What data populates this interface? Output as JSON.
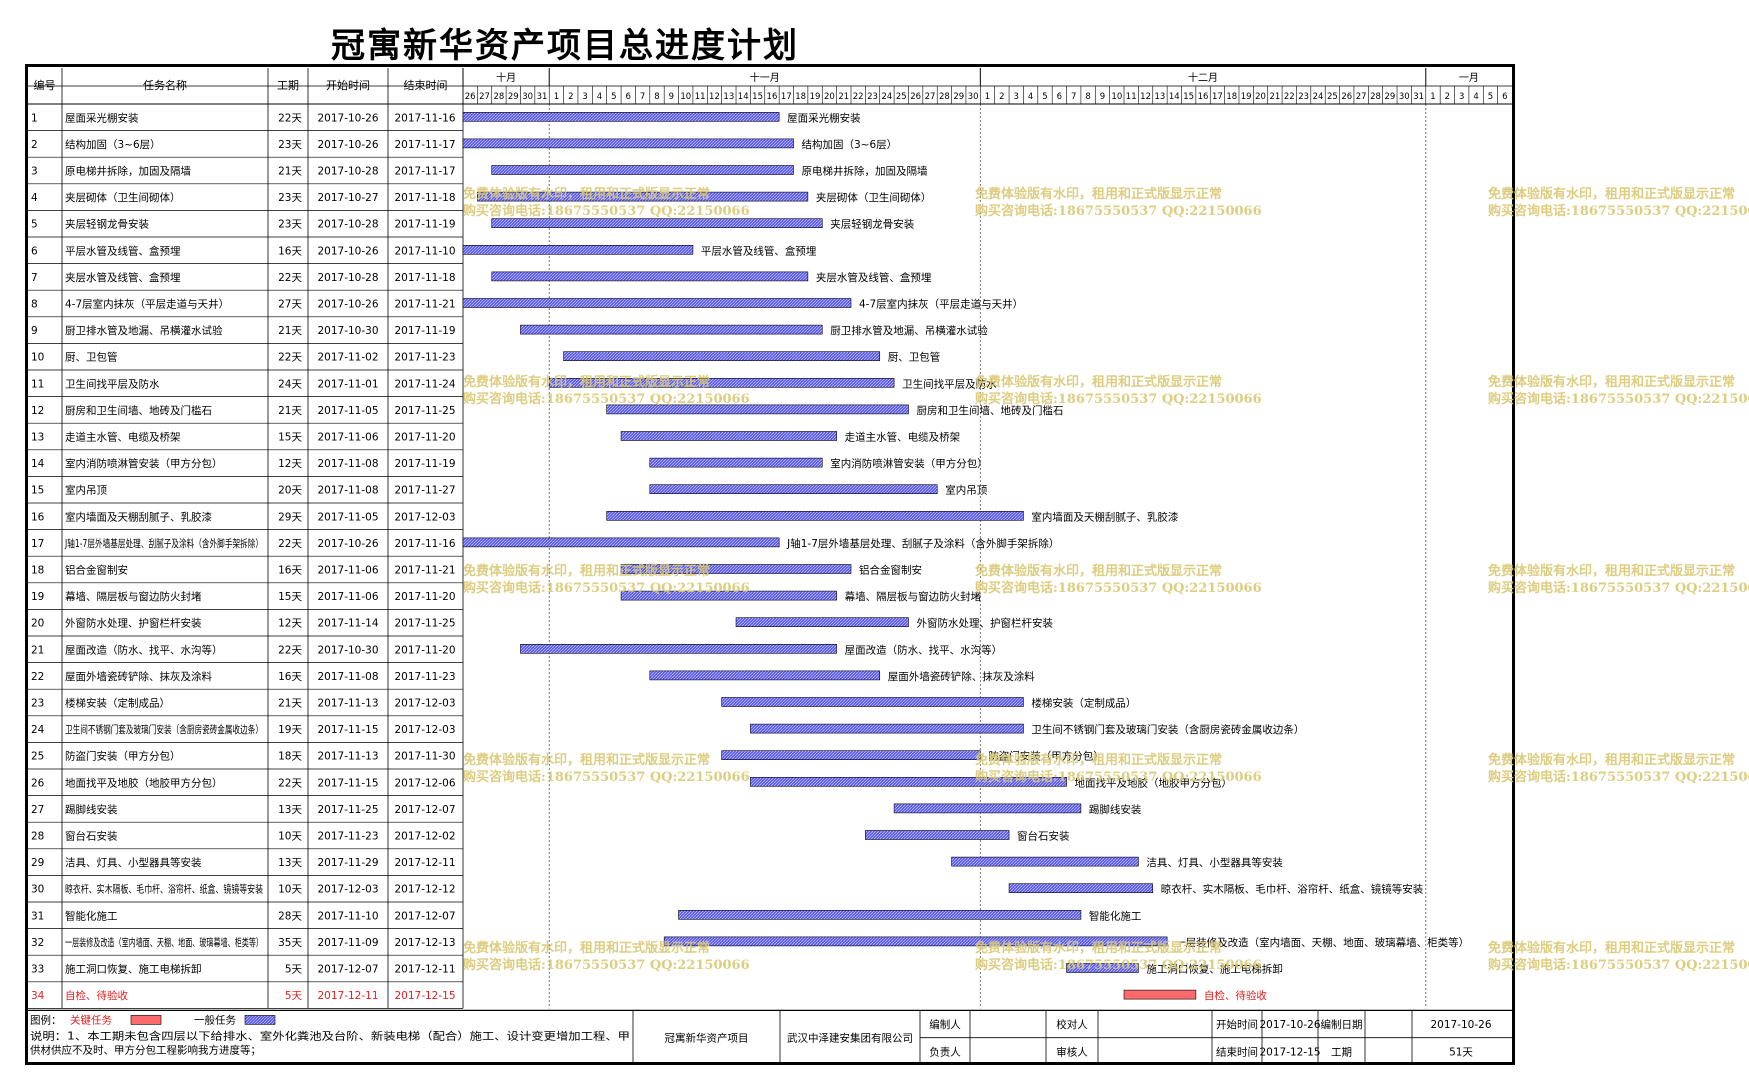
{
  "title": "冠寓新华资产项目总进度计划",
  "chart_data": {
    "type": "gantt",
    "columns": [
      "编号",
      "任务名称",
      "工期",
      "开始时间",
      "结束时间"
    ],
    "timeline": {
      "months": [
        {
          "label": "十月",
          "days": [
            26,
            27,
            28,
            29,
            30,
            31
          ]
        },
        {
          "label": "十一月",
          "days": [
            1,
            2,
            3,
            4,
            5,
            6,
            7,
            8,
            9,
            10,
            11,
            12,
            13,
            14,
            15,
            16,
            17,
            18,
            19,
            20,
            21,
            22,
            23,
            24,
            25,
            26,
            27,
            28,
            29,
            30
          ]
        },
        {
          "label": "十二月",
          "days": [
            1,
            2,
            3,
            4,
            5,
            6,
            7,
            8,
            9,
            10,
            11,
            12,
            13,
            14,
            15,
            16,
            17,
            18,
            19,
            20,
            21,
            22,
            23,
            24,
            25,
            26,
            27,
            28,
            29,
            30,
            31
          ]
        },
        {
          "label": "一月",
          "days": [
            1,
            2,
            3,
            4,
            5,
            6
          ]
        }
      ],
      "start": "2017-10-26"
    },
    "tasks": [
      {
        "id": "1",
        "name": "屋面采光棚安装",
        "duration": "22天",
        "start": "2017-10-26",
        "end": "2017-11-16",
        "critical": false
      },
      {
        "id": "2",
        "name": "结构加固（3~6层）",
        "duration": "23天",
        "start": "2017-10-26",
        "end": "2017-11-17",
        "critical": false
      },
      {
        "id": "3",
        "name": "原电梯井拆除，加固及隔墙",
        "duration": "21天",
        "start": "2017-10-28",
        "end": "2017-11-17",
        "critical": false
      },
      {
        "id": "4",
        "name": "夹层砌体（卫生间砌体）",
        "duration": "23天",
        "start": "2017-10-27",
        "end": "2017-11-18",
        "critical": false
      },
      {
        "id": "5",
        "name": "夹层轻钢龙骨安装",
        "duration": "23天",
        "start": "2017-10-28",
        "end": "2017-11-19",
        "critical": false
      },
      {
        "id": "6",
        "name": "平层水管及线管、盒预埋",
        "duration": "16天",
        "start": "2017-10-26",
        "end": "2017-11-10",
        "critical": false
      },
      {
        "id": "7",
        "name": "夹层水管及线管、盒预埋",
        "duration": "22天",
        "start": "2017-10-28",
        "end": "2017-11-18",
        "critical": false
      },
      {
        "id": "8",
        "name": "4-7层室内抹灰（平层走道与天井）",
        "duration": "27天",
        "start": "2017-10-26",
        "end": "2017-11-21",
        "critical": false
      },
      {
        "id": "9",
        "name": "厨卫排水管及地漏、吊横灌水试验",
        "duration": "21天",
        "start": "2017-10-30",
        "end": "2017-11-19",
        "critical": false
      },
      {
        "id": "10",
        "name": "厨、卫包管",
        "duration": "22天",
        "start": "2017-11-02",
        "end": "2017-11-23",
        "critical": false
      },
      {
        "id": "11",
        "name": "卫生间找平层及防水",
        "duration": "24天",
        "start": "2017-11-01",
        "end": "2017-11-24",
        "critical": false
      },
      {
        "id": "12",
        "name": "厨房和卫生间墙、地砖及门槛石",
        "duration": "21天",
        "start": "2017-11-05",
        "end": "2017-11-25",
        "critical": false
      },
      {
        "id": "13",
        "name": "走道主水管、电缆及桥架",
        "duration": "15天",
        "start": "2017-11-06",
        "end": "2017-11-20",
        "critical": false
      },
      {
        "id": "14",
        "name": "室内消防喷淋管安装（甲方分包）",
        "duration": "12天",
        "start": "2017-11-08",
        "end": "2017-11-19",
        "critical": false
      },
      {
        "id": "15",
        "name": "室内吊顶",
        "duration": "20天",
        "start": "2017-11-08",
        "end": "2017-11-27",
        "critical": false
      },
      {
        "id": "16",
        "name": "室内墙面及天棚刮腻子、乳胶漆",
        "duration": "29天",
        "start": "2017-11-05",
        "end": "2017-12-03",
        "critical": false
      },
      {
        "id": "17",
        "name": "J轴1-7层外墙基层处理、刮腻子及涂料（含外脚手架拆除）",
        "duration": "22天",
        "start": "2017-10-26",
        "end": "2017-11-16",
        "critical": false
      },
      {
        "id": "18",
        "name": "铝合金窗制安",
        "duration": "16天",
        "start": "2017-11-06",
        "end": "2017-11-21",
        "critical": false
      },
      {
        "id": "19",
        "name": "幕墙、隔层板与窗边防火封堵",
        "duration": "15天",
        "start": "2017-11-06",
        "end": "2017-11-20",
        "critical": false
      },
      {
        "id": "20",
        "name": "外窗防水处理、护窗栏杆安装",
        "duration": "12天",
        "start": "2017-11-14",
        "end": "2017-11-25",
        "critical": false
      },
      {
        "id": "21",
        "name": "屋面改造（防水、找平、水沟等）",
        "duration": "22天",
        "start": "2017-10-30",
        "end": "2017-11-20",
        "critical": false
      },
      {
        "id": "22",
        "name": "屋面外墙瓷砖铲除、抹灰及涂料",
        "duration": "16天",
        "start": "2017-11-08",
        "end": "2017-11-23",
        "critical": false
      },
      {
        "id": "23",
        "name": "楼梯安装（定制成品）",
        "duration": "21天",
        "start": "2017-11-13",
        "end": "2017-12-03",
        "critical": false
      },
      {
        "id": "24",
        "name": "卫生间不锈钢门套及玻璃门安装（含厨房瓷砖金属收边条）",
        "duration": "19天",
        "start": "2017-11-15",
        "end": "2017-12-03",
        "critical": false
      },
      {
        "id": "25",
        "name": "防盗门安装（甲方分包）",
        "duration": "18天",
        "start": "2017-11-13",
        "end": "2017-11-30",
        "critical": false
      },
      {
        "id": "26",
        "name": "地面找平及地胶（地胶甲方分包）",
        "duration": "22天",
        "start": "2017-11-15",
        "end": "2017-12-06",
        "critical": false
      },
      {
        "id": "27",
        "name": "踢脚线安装",
        "duration": "13天",
        "start": "2017-11-25",
        "end": "2017-12-07",
        "critical": false
      },
      {
        "id": "28",
        "name": "窗台石安装",
        "duration": "10天",
        "start": "2017-11-23",
        "end": "2017-12-02",
        "critical": false
      },
      {
        "id": "29",
        "name": "洁具、灯具、小型器具等安装",
        "duration": "13天",
        "start": "2017-11-29",
        "end": "2017-12-11",
        "critical": false
      },
      {
        "id": "30",
        "name": "晾衣杆、实木隔板、毛巾杆、浴帘杆、纸盒、镜镜等安装",
        "duration": "10天",
        "start": "2017-12-03",
        "end": "2017-12-12",
        "critical": false
      },
      {
        "id": "31",
        "name": "智能化施工",
        "duration": "28天",
        "start": "2017-11-10",
        "end": "2017-12-07",
        "critical": false
      },
      {
        "id": "32",
        "name": "一层装修及改造（室内墙面、天棚、地面、玻璃幕墙、柜类等）",
        "duration": "35天",
        "start": "2017-11-09",
        "end": "2017-12-13",
        "critical": false
      },
      {
        "id": "33",
        "name": "施工洞口恢复、施工电梯拆卸",
        "duration": "5天",
        "start": "2017-12-07",
        "end": "2017-12-11",
        "critical": false
      },
      {
        "id": "34",
        "name": "自检、待验收",
        "duration": "5天",
        "start": "2017-12-11",
        "end": "2017-12-15",
        "critical": true
      }
    ],
    "colors": {
      "normal": "#5a5af0",
      "critical": "#ff6b6b",
      "critical_text": "#e02020"
    }
  },
  "legend": {
    "label": "图例：",
    "critical": "关键任务",
    "normal": "一般任务"
  },
  "note": [
    "说明：1、本工期未包含四层以下给排水、室外化粪池及台阶、新装电梯（配合）施工、设计变更增加工程、甲",
    "供材供应不及时、甲方分包工程影响我方进度等；"
  ],
  "footer": {
    "project": "冠寓新华资产项目",
    "company": "武汉中泽建安集团有限公司",
    "compiler_label": "编制人",
    "compiler": "",
    "reviewer_label": "审核人",
    "reviewer": "",
    "proofreader_label": "校对人",
    "proofreader": "",
    "manager_label": "负责人",
    "manager": "",
    "start_label": "开始时间",
    "start": "2017-10-26",
    "end_label": "结束时间",
    "end": "2017-12-15",
    "date_label": "编制日期",
    "date": "2017-10-26",
    "duration_label": "工期",
    "duration": "51天"
  },
  "watermark": {
    "line1": "免费体验版有水印，租用和正式版显示正常",
    "line2": "购买咨询电话:18675550537 QQ:22150066"
  }
}
